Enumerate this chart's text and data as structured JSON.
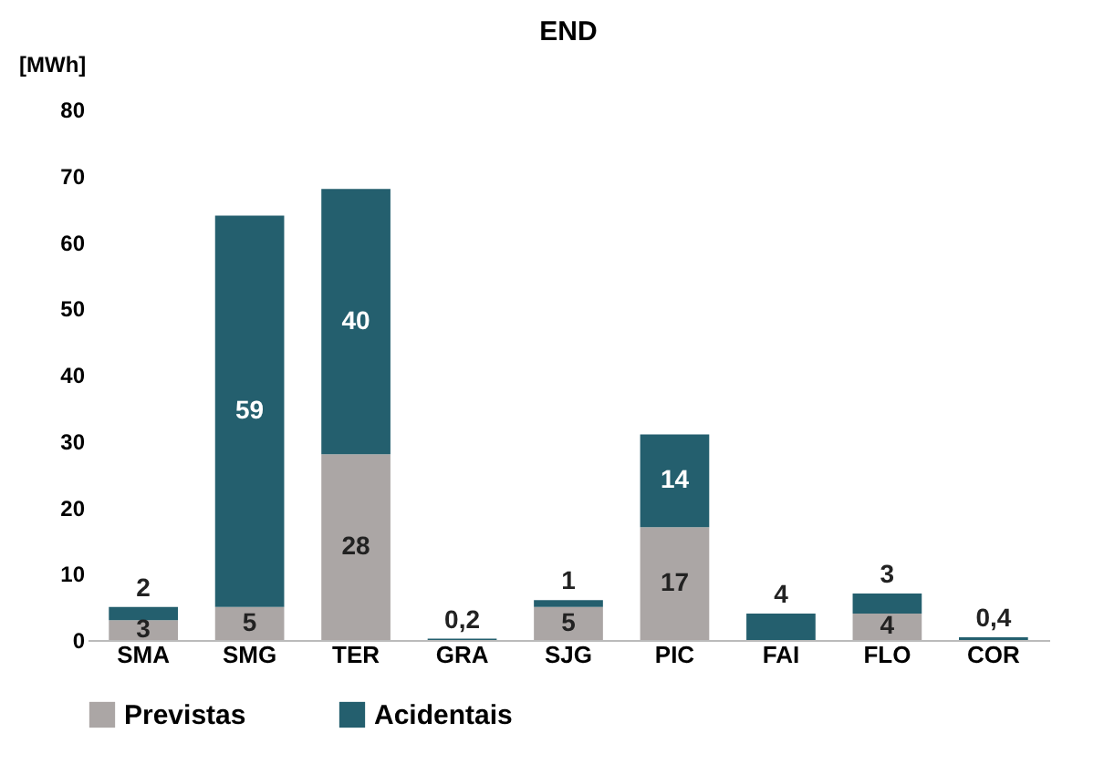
{
  "chart_data": {
    "type": "bar",
    "title": "END",
    "ylabel": "[MWh]",
    "stacked": true,
    "categories": [
      "SMA",
      "SMG",
      "TER",
      "GRA",
      "SJG",
      "PIC",
      "FAI",
      "FLO",
      "COR"
    ],
    "series": [
      {
        "name": "Previstas",
        "color": "#aba6a5",
        "values": [
          3,
          5,
          28,
          null,
          5,
          17,
          null,
          4,
          null
        ],
        "value_labels": [
          "3",
          "5",
          "28",
          null,
          "5",
          "17",
          null,
          "4",
          null
        ]
      },
      {
        "name": "Acidentais",
        "color": "#245f6e",
        "values": [
          2,
          59,
          40,
          0.2,
          1,
          14,
          4,
          3,
          0.4
        ],
        "value_labels": [
          "2",
          "59",
          "40",
          "0,2",
          "1",
          "14",
          "4",
          "3",
          "0,4"
        ]
      }
    ],
    "ylim": [
      0,
      80
    ],
    "yticks": [
      0,
      10,
      20,
      30,
      40,
      50,
      60,
      70,
      80
    ],
    "grid": false,
    "legend": "bottom"
  }
}
